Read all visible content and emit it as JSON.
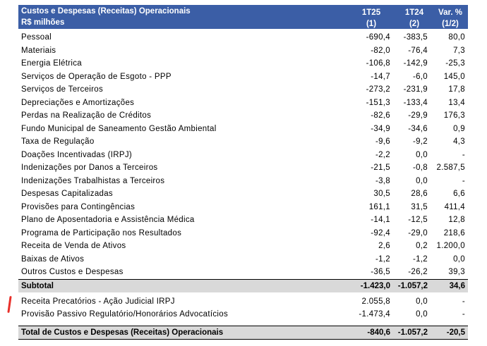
{
  "header": {
    "title": "Custos e Despesas (Receitas) Operacionais",
    "unit": "R$ milhões",
    "col1_a": "1T25",
    "col1_b": "(1)",
    "col2_a": "1T24",
    "col2_b": "(2)",
    "col3_a": "Var. %",
    "col3_b": "(1/2)"
  },
  "rows": [
    {
      "label": "Pessoal",
      "v1": "-690,4",
      "v2": "-383,5",
      "v3": "80,0"
    },
    {
      "label": "Materiais",
      "v1": "-82,0",
      "v2": "-76,4",
      "v3": "7,3"
    },
    {
      "label": "Energia Elétrica",
      "v1": "-106,8",
      "v2": "-142,9",
      "v3": "-25,3"
    },
    {
      "label": "Serviços de Operação de Esgoto - PPP",
      "v1": "-14,7",
      "v2": "-6,0",
      "v3": "145,0"
    },
    {
      "label": "Serviços de Terceiros",
      "v1": "-273,2",
      "v2": "-231,9",
      "v3": "17,8"
    },
    {
      "label": "Depreciações e Amortizações",
      "v1": "-151,3",
      "v2": "-133,4",
      "v3": "13,4"
    },
    {
      "label": "Perdas na Realização de Créditos",
      "v1": "-82,6",
      "v2": "-29,9",
      "v3": "176,3"
    },
    {
      "label": "Fundo Municipal de Saneamento Gestão Ambiental",
      "v1": "-34,9",
      "v2": "-34,6",
      "v3": "0,9"
    },
    {
      "label": "Taxa de Regulação",
      "v1": "-9,6",
      "v2": "-9,2",
      "v3": "4,3"
    },
    {
      "label": "Doações Incentivadas (IRPJ)",
      "v1": "-2,2",
      "v2": "0,0",
      "v3": "-"
    },
    {
      "label": "Indenizações por Danos a Terceiros",
      "v1": "-21,5",
      "v2": "-0,8",
      "v3": "2.587,5"
    },
    {
      "label": "Indenizações Trabalhistas a Terceiros",
      "v1": "-3,8",
      "v2": "0,0",
      "v3": "-"
    },
    {
      "label": "Despesas Capitalizadas",
      "v1": "30,5",
      "v2": "28,6",
      "v3": "6,6"
    },
    {
      "label": "Provisões para Contingências",
      "v1": "161,1",
      "v2": "31,5",
      "v3": "411,4"
    },
    {
      "label": "Plano de Aposentadoria e Assistência Médica",
      "v1": "-14,1",
      "v2": "-12,5",
      "v3": "12,8"
    },
    {
      "label": "Programa de Participação nos Resultados",
      "v1": "-92,4",
      "v2": "-29,0",
      "v3": "218,6"
    },
    {
      "label": "Receita de Venda de Ativos",
      "v1": "2,6",
      "v2": "0,2",
      "v3": "1.200,0"
    },
    {
      "label": "Baixas de Ativos",
      "v1": "-1,2",
      "v2": "-1,2",
      "v3": "0,0"
    },
    {
      "label": "Outros Custos e Despesas",
      "v1": "-36,5",
      "v2": "-26,2",
      "v3": "39,3"
    }
  ],
  "subtotal": {
    "label": "Subtotal",
    "v1": "-1.423,0",
    "v2": "-1.057,2",
    "v3": "34,6"
  },
  "extra_rows": [
    {
      "label": "Receita Precatórios - Ação Judicial IRPJ",
      "v1": "2.055,8",
      "v2": "0,0",
      "v3": "-"
    },
    {
      "label": "Provisão Passivo Regulatório/Honorários Advocatícios",
      "v1": "-1.473,4",
      "v2": "0,0",
      "v3": "-"
    }
  ],
  "total": {
    "label": "Total de Custos e Despesas (Receitas) Operacionais",
    "v1": "-840,6",
    "v2": "-1.057,2",
    "v3": "-20,5"
  },
  "colors": {
    "header_bg": "#3b5ea6",
    "subtotal_bg": "#d9d9d9",
    "annotation_mark": "#e8302a"
  }
}
